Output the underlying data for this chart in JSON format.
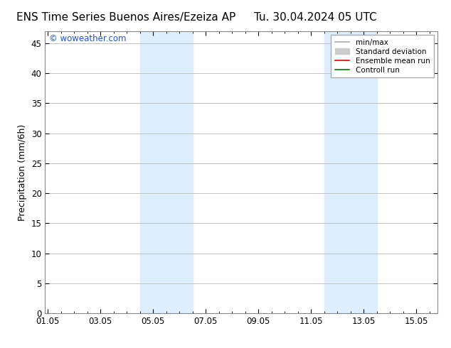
{
  "title_left": "ENS Time Series Buenos Aires/Ezeiza AP",
  "title_right": "Tu. 30.04.2024 05 UTC",
  "ylabel": "Precipitation (mm/6h)",
  "ylim": [
    0,
    47
  ],
  "yticks": [
    0,
    5,
    10,
    15,
    20,
    25,
    30,
    35,
    40,
    45
  ],
  "xtick_labels": [
    "01.05",
    "03.05",
    "05.05",
    "07.05",
    "09.05",
    "11.05",
    "13.05",
    "15.05"
  ],
  "xtick_positions": [
    0,
    2,
    4,
    6,
    8,
    10,
    12,
    14
  ],
  "xlim": [
    -0.1,
    14.8
  ],
  "shaded_bands": [
    {
      "x_start": 3.5,
      "x_end": 4.5
    },
    {
      "x_start": 4.5,
      "x_end": 5.5
    },
    {
      "x_start": 10.5,
      "x_end": 11.5
    },
    {
      "x_start": 11.5,
      "x_end": 12.5
    }
  ],
  "shade_color": "#ddeeff",
  "watermark_text": "© woweather.com",
  "watermark_color": "#2255cc",
  "legend_items": [
    {
      "label": "min/max",
      "color": "#aaaaaa",
      "lw": 1.2,
      "style": "solid"
    },
    {
      "label": "Standard deviation",
      "color": "#cccccc",
      "lw": 5,
      "style": "solid"
    },
    {
      "label": "Ensemble mean run",
      "color": "#dd0000",
      "lw": 1.2,
      "style": "solid"
    },
    {
      "label": "Controll run",
      "color": "#007700",
      "lw": 1.2,
      "style": "solid"
    }
  ],
  "bg_color": "#ffffff",
  "plot_bg_color": "#ffffff",
  "grid_color": "#bbbbbb",
  "tick_label_fontsize": 8.5,
  "title_fontsize": 11,
  "ylabel_fontsize": 9
}
